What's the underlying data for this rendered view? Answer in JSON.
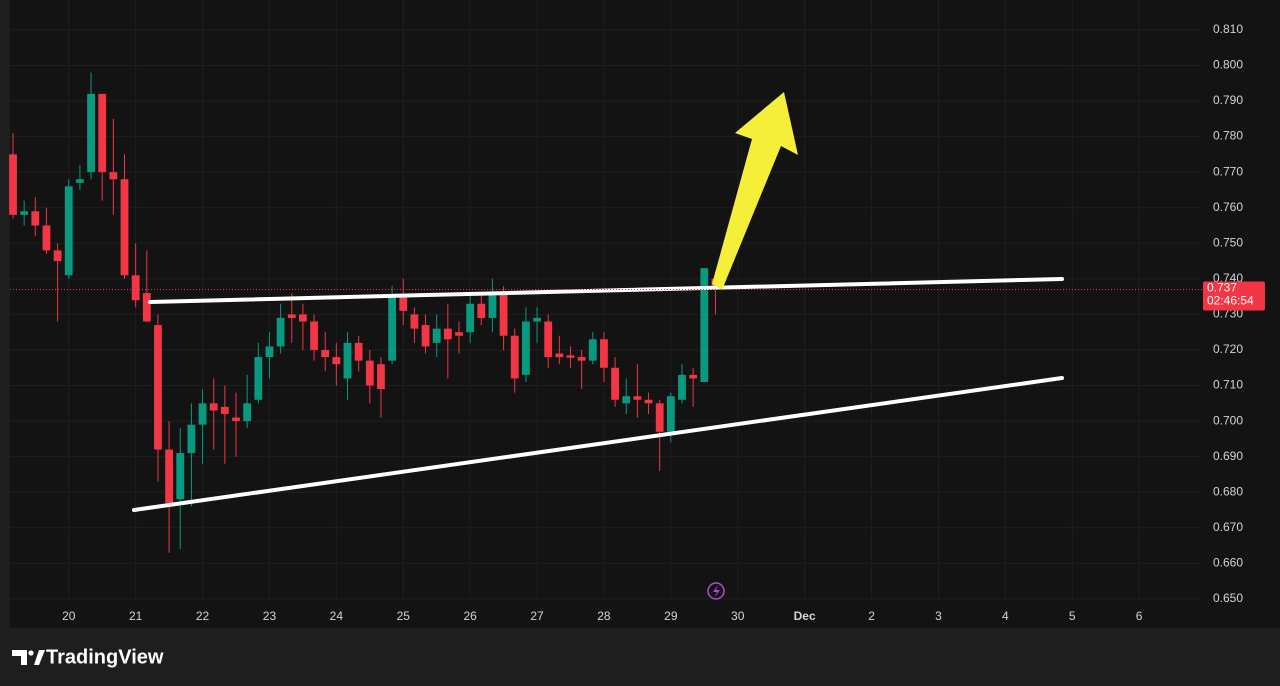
{
  "chart_data": {
    "type": "candlestick",
    "up_color": "#089981",
    "down_color": "#f23645",
    "grid": true,
    "open": [
      0.775,
      0.758,
      0.759,
      0.755,
      0.748,
      0.741,
      0.767,
      0.77,
      0.792,
      0.77,
      0.768,
      0.741,
      0.736,
      0.727,
      0.692,
      0.678,
      0.691,
      0.699,
      0.705,
      0.704,
      0.701,
      0.7,
      0.706,
      0.718,
      0.721,
      0.73,
      0.73,
      0.728,
      0.72,
      0.718,
      0.712,
      0.722,
      0.717,
      0.716,
      0.717,
      0.735,
      0.73,
      0.727,
      0.722,
      0.726,
      0.725,
      0.725,
      0.733,
      0.729,
      0.736,
      0.724,
      0.713,
      0.728,
      0.728,
      0.719,
      0.7185,
      0.718,
      0.717,
      0.723,
      0.715,
      0.705,
      0.707,
      0.706,
      0.705,
      0.697,
      0.706,
      0.713,
      0.711,
      0.74
    ],
    "high": [
      0.781,
      0.762,
      0.763,
      0.76,
      0.75,
      0.768,
      0.772,
      0.798,
      0.792,
      0.785,
      0.775,
      0.75,
      0.748,
      0.73,
      0.7,
      0.698,
      0.705,
      0.709,
      0.712,
      0.71,
      0.708,
      0.713,
      0.722,
      0.725,
      0.733,
      0.736,
      0.733,
      0.73,
      0.725,
      0.722,
      0.725,
      0.724,
      0.72,
      0.718,
      0.738,
      0.74,
      0.732,
      0.73,
      0.73,
      0.733,
      0.728,
      0.736,
      0.736,
      0.74,
      0.738,
      0.726,
      0.732,
      0.732,
      0.73,
      0.724,
      0.721,
      0.72,
      0.725,
      0.725,
      0.718,
      0.712,
      0.716,
      0.708,
      0.706,
      0.708,
      0.716,
      0.715,
      0.743,
      0.742
    ],
    "low": [
      0.757,
      0.755,
      0.752,
      0.747,
      0.728,
      0.74,
      0.765,
      0.768,
      0.762,
      0.758,
      0.74,
      0.732,
      0.728,
      0.683,
      0.663,
      0.664,
      0.676,
      0.688,
      0.692,
      0.688,
      0.69,
      0.698,
      0.705,
      0.712,
      0.719,
      0.722,
      0.72,
      0.717,
      0.714,
      0.71,
      0.706,
      0.714,
      0.705,
      0.701,
      0.716,
      0.727,
      0.722,
      0.719,
      0.718,
      0.712,
      0.719,
      0.722,
      0.727,
      0.725,
      0.72,
      0.708,
      0.711,
      0.722,
      0.715,
      0.716,
      0.715,
      0.709,
      0.716,
      0.711,
      0.704,
      0.702,
      0.701,
      0.702,
      0.686,
      0.694,
      0.705,
      0.704,
      0.711,
      0.73
    ],
    "close": [
      0.758,
      0.759,
      0.755,
      0.748,
      0.745,
      0.766,
      0.768,
      0.792,
      0.77,
      0.768,
      0.741,
      0.734,
      0.728,
      0.692,
      0.677,
      0.691,
      0.699,
      0.705,
      0.703,
      0.702,
      0.7,
      0.705,
      0.718,
      0.721,
      0.729,
      0.729,
      0.728,
      0.72,
      0.718,
      0.716,
      0.722,
      0.717,
      0.71,
      0.709,
      0.735,
      0.731,
      0.726,
      0.721,
      0.726,
      0.723,
      0.724,
      0.733,
      0.729,
      0.736,
      0.724,
      0.712,
      0.728,
      0.729,
      0.718,
      0.718,
      0.7178,
      0.717,
      0.723,
      0.715,
      0.706,
      0.707,
      0.706,
      0.705,
      0.697,
      0.707,
      0.713,
      0.712,
      0.743,
      0.737
    ],
    "xlim": [
      -0.27,
      106.46
    ],
    "xticks": [
      {
        "value": 5,
        "label": "20"
      },
      {
        "value": 11,
        "label": "21"
      },
      {
        "value": 17,
        "label": "22"
      },
      {
        "value": 23,
        "label": "23"
      },
      {
        "value": 29,
        "label": "24"
      },
      {
        "value": 35,
        "label": "25"
      },
      {
        "value": 41,
        "label": "26"
      },
      {
        "value": 47,
        "label": "27"
      },
      {
        "value": 53,
        "label": "28"
      },
      {
        "value": 59,
        "label": "29"
      },
      {
        "value": 65,
        "label": "30"
      },
      {
        "value": 71,
        "label": "Dec"
      },
      {
        "value": 77,
        "label": "2"
      },
      {
        "value": 83,
        "label": "3"
      },
      {
        "value": 89,
        "label": "4"
      },
      {
        "value": 95,
        "label": "5"
      },
      {
        "value": 101,
        "label": "6"
      }
    ],
    "ylim": [
      0.6497,
      0.8184
    ],
    "yticks": [
      {
        "value": 0.65,
        "label": "0.650"
      },
      {
        "value": 0.66,
        "label": "0.660"
      },
      {
        "value": 0.67,
        "label": "0.670"
      },
      {
        "value": 0.68,
        "label": "0.680"
      },
      {
        "value": 0.69,
        "label": "0.690"
      },
      {
        "value": 0.7,
        "label": "0.700"
      },
      {
        "value": 0.71,
        "label": "0.710"
      },
      {
        "value": 0.72,
        "label": "0.720"
      },
      {
        "value": 0.73,
        "label": "0.730"
      },
      {
        "value": 0.74,
        "label": "0.740"
      },
      {
        "value": 0.75,
        "label": "0.750"
      },
      {
        "value": 0.76,
        "label": "0.760"
      },
      {
        "value": 0.77,
        "label": "0.770"
      },
      {
        "value": 0.78,
        "label": "0.780"
      },
      {
        "value": 0.79,
        "label": "0.790"
      },
      {
        "value": 0.8,
        "label": "0.800"
      },
      {
        "value": 0.81,
        "label": "0.810"
      }
    ],
    "last_price": 0.737,
    "countdown": "02:46:54",
    "branding": "TradingView"
  }
}
